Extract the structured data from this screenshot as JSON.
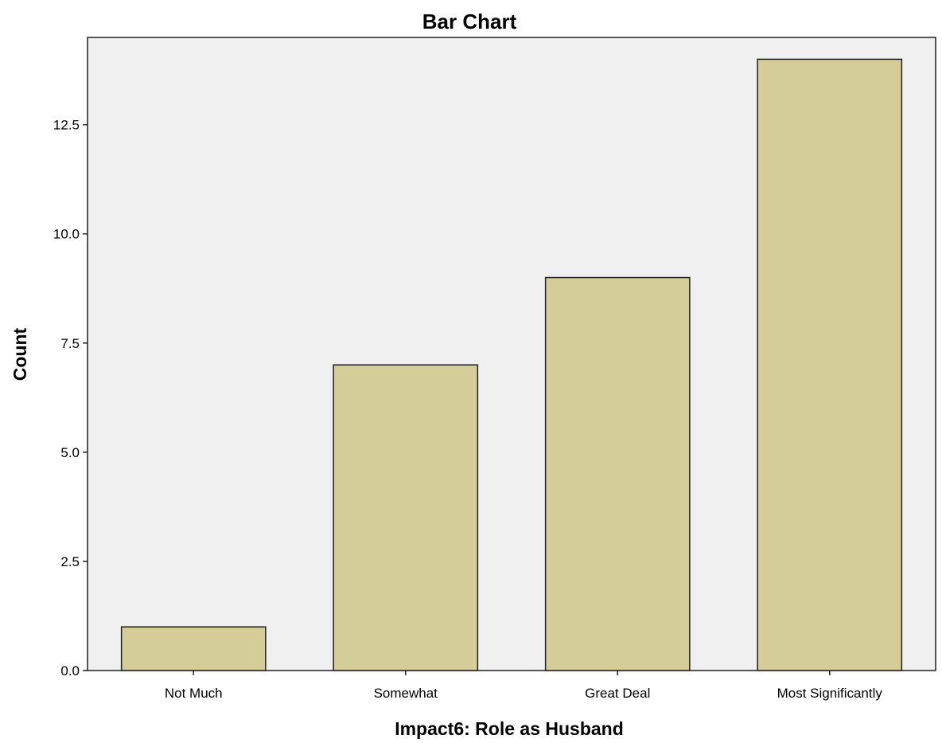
{
  "chart_data": {
    "type": "bar",
    "title": "Bar Chart",
    "xlabel": "Impact6: Role as Husband",
    "ylabel": "Count",
    "categories": [
      "Not Much",
      "Somewhat",
      "Great Deal",
      "Most Significantly"
    ],
    "values": [
      1,
      7,
      9,
      14
    ],
    "ylim": [
      0,
      14.5
    ],
    "yticks": [
      0,
      2.5,
      5,
      7.5,
      10,
      12.5
    ],
    "ytick_labels": [
      "0.0",
      "2.5",
      "5.0",
      "7.5",
      "10.0",
      "12.5"
    ],
    "grid": false,
    "legend": "none",
    "colors": {
      "bar_fill": "#d4cd98",
      "bar_stroke": "#1f1f1f",
      "plot_background": "#f0f0f0",
      "frame": "#1f1f1f"
    }
  }
}
